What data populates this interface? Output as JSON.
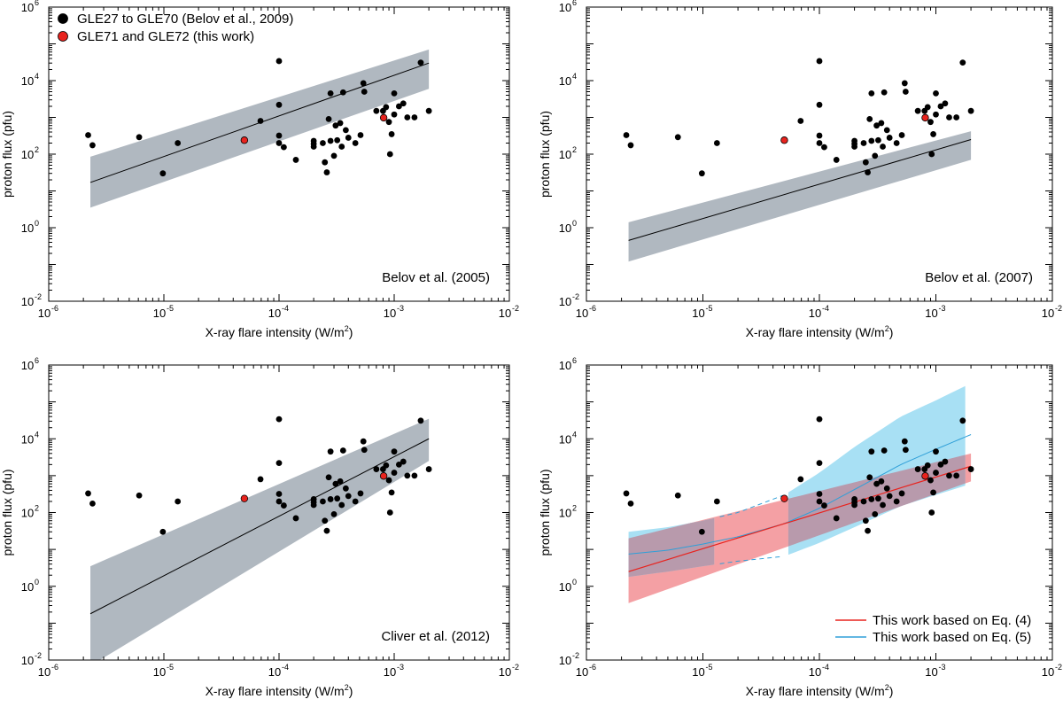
{
  "legend_points": [
    {
      "label": "GLE27 to GLE70 (Belov et al., 2009)",
      "color": "#000000"
    },
    {
      "label": "GLE71 and GLE72 (this work)",
      "color": "#e8231e"
    }
  ],
  "legend_lines": [
    {
      "label": "This work based on Eq. (4)",
      "color": "#e8231e"
    },
    {
      "label": "This work based on Eq. (5)",
      "color": "#2f9fd8"
    }
  ],
  "colors": {
    "gray_band": "#b0b8c0",
    "red_band": "#f4a0a4",
    "blue_band": "#a8e0f4",
    "overlap_band": "#b89aac",
    "red_line": "#e8231e",
    "blue_line": "#2f9fd8"
  },
  "axis_labels": {
    "xlabel": "X-ray flare intensity (W/m",
    "xlabel_sup": "2",
    "xlabel_end": ")",
    "ylabel": "proton flux (pfu)"
  },
  "chart_data": [
    {
      "type": "scatter",
      "title": "Belov et al. (2005)",
      "xlabel": "X-ray flare intensity (W/m2)",
      "ylabel": "proton flux (pfu)",
      "xscale": "log",
      "yscale": "log",
      "xlim": [
        1e-06,
        0.01
      ],
      "ylim": [
        0.01,
        1000000.0
      ],
      "xticks": [
        "10",
        "10",
        "10",
        "10",
        "10"
      ],
      "xtick_exp": [
        "-6",
        "-5",
        "-4",
        "-3",
        "-2"
      ],
      "yticks": [
        "10",
        "10",
        "10",
        "10",
        "10"
      ],
      "ytick_exp": [
        "-2",
        "0",
        "2",
        "4",
        "6"
      ],
      "fit": {
        "x": [
          2.3e-06,
          0.002
        ],
        "y": [
          17,
          30000
        ],
        "band_lower": [
          3.5,
          6000
        ],
        "band_upper": [
          85,
          70000
        ]
      },
      "legend": "top-left"
    },
    {
      "type": "scatter",
      "title": "Belov et al. (2007)",
      "xlabel": "X-ray flare intensity (W/m2)",
      "ylabel": "proton flux (pfu)",
      "xscale": "log",
      "yscale": "log",
      "xlim": [
        1e-06,
        0.01
      ],
      "ylim": [
        0.01,
        1000000.0
      ],
      "xticks": [
        "10",
        "10",
        "10",
        "10",
        "10"
      ],
      "xtick_exp": [
        "-6",
        "-5",
        "-4",
        "-3",
        "-2"
      ],
      "yticks": [
        "10",
        "10",
        "10",
        "10",
        "10"
      ],
      "ytick_exp": [
        "-2",
        "0",
        "2",
        "4",
        "6"
      ],
      "fit": {
        "x": [
          2.3e-06,
          0.002
        ],
        "y": [
          0.45,
          250
        ],
        "band_lower": [
          0.12,
          70
        ],
        "band_upper": [
          1.4,
          420
        ]
      }
    },
    {
      "type": "scatter",
      "title": "Cliver et al. (2012)",
      "xlabel": "X-ray flare intensity (W/m2)",
      "ylabel": "proton flux (pfu)",
      "xscale": "log",
      "yscale": "log",
      "xlim": [
        1e-06,
        0.01
      ],
      "ylim": [
        0.01,
        1000000.0
      ],
      "xticks": [
        "10",
        "10",
        "10",
        "10",
        "10"
      ],
      "xtick_exp": [
        "-6",
        "-5",
        "-4",
        "-3",
        "-2"
      ],
      "yticks": [
        "10",
        "10",
        "10",
        "10",
        "10"
      ],
      "ytick_exp": [
        "-2",
        "0",
        "2",
        "4",
        "6"
      ],
      "fit": {
        "x": [
          2.3e-06,
          0.002
        ],
        "y": [
          0.18,
          10000
        ],
        "band_lower": [
          0.007,
          2500
        ],
        "band_upper": [
          3.5,
          35000
        ]
      }
    },
    {
      "type": "scatter",
      "title": "",
      "xlabel": "X-ray flare intensity (W/m2)",
      "ylabel": "proton flux (pfu)",
      "xscale": "log",
      "yscale": "log",
      "xlim": [
        1e-06,
        0.01
      ],
      "ylim": [
        0.01,
        1000000.0
      ],
      "xticks": [
        "10",
        "10",
        "10",
        "10",
        "10"
      ],
      "xtick_exp": [
        "-6",
        "-5",
        "-4",
        "-3",
        "-2"
      ],
      "yticks": [
        "10",
        "10",
        "10",
        "10",
        "10"
      ],
      "ytick_exp": [
        "-2",
        "0",
        "2",
        "4",
        "6"
      ],
      "eq4": {
        "x": [
          2.3e-06,
          0.002
        ],
        "y": [
          2.5,
          1800
        ],
        "band_lower": [
          0.35,
          700
        ],
        "band_upper": [
          20,
          4000
        ]
      },
      "eq5": {
        "x": [
          2.3e-06,
          5e-06,
          1e-05,
          2e-05,
          5e-05,
          0.0001,
          0.0002,
          0.0005,
          0.001,
          0.002
        ],
        "y": [
          7.5,
          9.5,
          14,
          22,
          50,
          130,
          420,
          2000,
          5200,
          13000
        ],
        "band_lower": [
          1.8,
          2.5,
          3.5,
          4.8,
          6.5,
          15,
          40,
          150,
          300,
          600
        ],
        "band_upper": [
          30,
          40,
          60,
          100,
          300,
          1200,
          6000,
          40000,
          110000,
          320000
        ]
      },
      "legend": "bottom-right"
    }
  ],
  "scatter_points": {
    "black": [
      [
        2.2e-06,
        330
      ],
      [
        2.4e-06,
        175
      ],
      [
        6.1e-06,
        290
      ],
      [
        9.8e-06,
        30
      ],
      [
        1.32e-05,
        200
      ],
      [
        6.9e-05,
        800
      ],
      [
        0.0001,
        34000
      ],
      [
        0.0001,
        2200
      ],
      [
        0.0001,
        320
      ],
      [
        0.0001,
        200
      ],
      [
        0.00011,
        155
      ],
      [
        0.00014,
        70
      ],
      [
        0.0002,
        230
      ],
      [
        0.0002,
        160
      ],
      [
        0.0002,
        190
      ],
      [
        0.00025,
        60
      ],
      [
        0.00026,
        32
      ],
      [
        0.00027,
        900
      ],
      [
        0.00028,
        4500
      ],
      [
        0.00028,
        230
      ],
      [
        0.0003,
        90
      ],
      [
        0.00031,
        600
      ],
      [
        0.00032,
        240
      ],
      [
        0.00034,
        700
      ],
      [
        0.00035,
        160
      ],
      [
        0.00036,
        4800
      ],
      [
        0.0004,
        280
      ],
      [
        0.00046,
        200
      ],
      [
        0.00051,
        330
      ],
      [
        0.00054,
        8500
      ],
      [
        0.00055,
        5000
      ],
      [
        0.0007,
        1500
      ],
      [
        0.0008,
        1500
      ],
      [
        0.00085,
        1900
      ],
      [
        0.0009,
        750
      ],
      [
        0.00092,
        100
      ],
      [
        0.001,
        1200
      ],
      [
        0.001,
        4500
      ],
      [
        0.0011,
        2000
      ],
      [
        0.0012,
        2400
      ],
      [
        0.0013,
        1000
      ],
      [
        0.0015,
        1000
      ],
      [
        0.0017,
        31000
      ],
      [
        0.002,
        1500
      ],
      [
        0.00095,
        350
      ],
      [
        0.00024,
        200
      ],
      [
        0.00038,
        450
      ]
    ],
    "red": [
      [
        5e-05,
        240
      ],
      [
        0.00081,
        980
      ]
    ]
  }
}
